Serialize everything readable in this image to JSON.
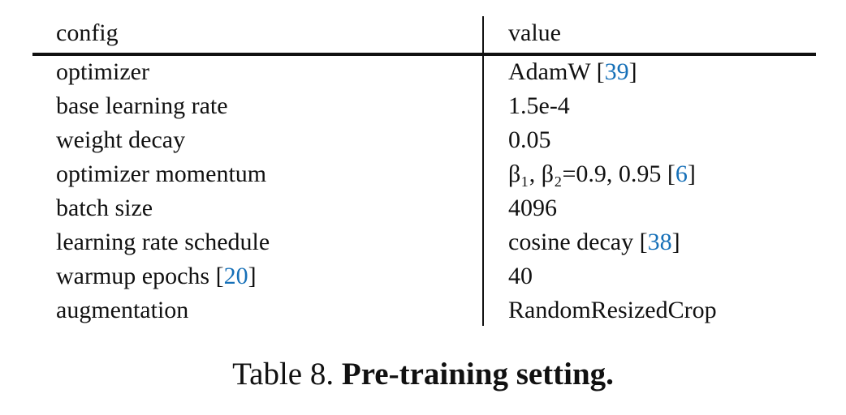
{
  "colors": {
    "citation": "#1670b8",
    "text": "#111111"
  },
  "table": {
    "headers": [
      "config",
      "value"
    ],
    "rows": [
      {
        "config": "optimizer",
        "config_cite": "",
        "value": "AdamW",
        "value_cite": "39"
      },
      {
        "config": "base learning rate",
        "config_cite": "",
        "value": "1.5e-4",
        "value_cite": ""
      },
      {
        "config": "weight decay",
        "config_cite": "",
        "value": "0.05",
        "value_cite": ""
      },
      {
        "config": "optimizer momentum",
        "config_cite": "",
        "value": "β₁, β₂=0.9, 0.95",
        "value_cite": "6"
      },
      {
        "config": "batch size",
        "config_cite": "",
        "value": "4096",
        "value_cite": ""
      },
      {
        "config": "learning rate schedule",
        "config_cite": "",
        "value": "cosine decay",
        "value_cite": "38"
      },
      {
        "config": "warmup epochs",
        "config_cite": "20",
        "value": "40",
        "value_cite": ""
      },
      {
        "config": "augmentation",
        "config_cite": "",
        "value": "RandomResizedCrop",
        "value_cite": ""
      }
    ]
  },
  "caption": {
    "label": "Table 8.",
    "title": "Pre-training setting."
  }
}
